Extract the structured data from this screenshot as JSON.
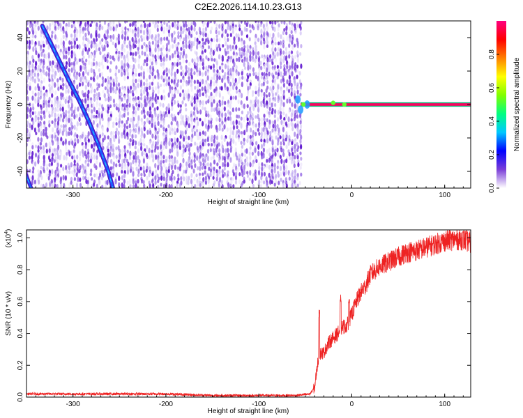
{
  "title": "C2E2.2026.114.10.23.G13",
  "chart_data": [
    {
      "type": "heatmap",
      "xlabel": "Height of straight line (km)",
      "ylabel": "Frequency (Hz)",
      "xlim": [
        -350,
        128
      ],
      "ylim": [
        -50,
        50
      ],
      "x_ticks": [
        -300,
        -200,
        -100,
        0,
        100
      ],
      "y_ticks": [
        -40,
        -20,
        0,
        20,
        40
      ],
      "noise_region_x": [
        -350,
        -55
      ],
      "diagonal_trace": [
        [
          -333,
          47
        ],
        [
          -318,
          30
        ],
        [
          -305,
          15
        ],
        [
          -293,
          2
        ],
        [
          -283,
          -10
        ],
        [
          -272,
          -25
        ],
        [
          -262,
          -40
        ],
        [
          -257,
          -50
        ]
      ],
      "secondary_trace": [
        [
          -352,
          -40
        ],
        [
          -345,
          -50
        ]
      ],
      "tone_frequency": 0,
      "tone_x_range": [
        -55,
        128
      ],
      "colorbar": {
        "label": "Normalized spectral amplitude",
        "range": [
          0.0,
          1.0
        ],
        "ticks": [
          0.0,
          0.2,
          0.4,
          0.6,
          0.8
        ],
        "tick_labels": [
          "0.0",
          "0.2",
          "0.4",
          "0.6",
          "0.8"
        ],
        "colors": [
          "#ffffff",
          "#7b3fd8",
          "#0000ff",
          "#00c8ff",
          "#00ff80",
          "#80ff00",
          "#ffff00",
          "#ff8000",
          "#ff0000",
          "#ff0080"
        ]
      }
    },
    {
      "type": "line",
      "xlabel": "Height of straight line (km)",
      "ylabel": "SNR (10 * v/v)",
      "y_multiplier_base": "(x10",
      "y_multiplier_exp": "4",
      "y_multiplier_close": ")",
      "xlim": [
        -350,
        128
      ],
      "ylim": [
        0.0,
        1.05
      ],
      "x_ticks": [
        -300,
        -200,
        -100,
        0,
        100
      ],
      "y_ticks": [
        0.0,
        0.2,
        0.4,
        0.6,
        0.8,
        1.0
      ],
      "y_tick_labels": [
        "0.0",
        "0.2",
        "0.4",
        "0.6",
        "0.8",
        "1.0"
      ],
      "series_color": "#ee2222",
      "series": [
        {
          "x": [
            -350,
            -300,
            -250,
            -200,
            -150,
            -100,
            -60,
            -45,
            -40,
            -37,
            -35,
            -30,
            -25,
            -20,
            -15,
            -10,
            -5,
            0,
            5,
            10,
            15,
            20,
            30,
            40,
            50,
            60,
            70,
            80,
            90,
            100,
            110,
            120,
            128
          ],
          "y": [
            0.02,
            0.02,
            0.02,
            0.02,
            0.01,
            0.01,
            0.01,
            0.02,
            0.06,
            0.2,
            0.27,
            0.28,
            0.34,
            0.37,
            0.4,
            0.44,
            0.45,
            0.52,
            0.6,
            0.66,
            0.7,
            0.77,
            0.82,
            0.85,
            0.88,
            0.91,
            0.92,
            0.94,
            0.96,
            0.98,
            0.99,
            0.99,
            0.97
          ],
          "peaks": [
            [
              -35,
              0.55
            ],
            [
              -12,
              0.65
            ],
            [
              -3,
              0.62
            ]
          ]
        }
      ]
    }
  ]
}
